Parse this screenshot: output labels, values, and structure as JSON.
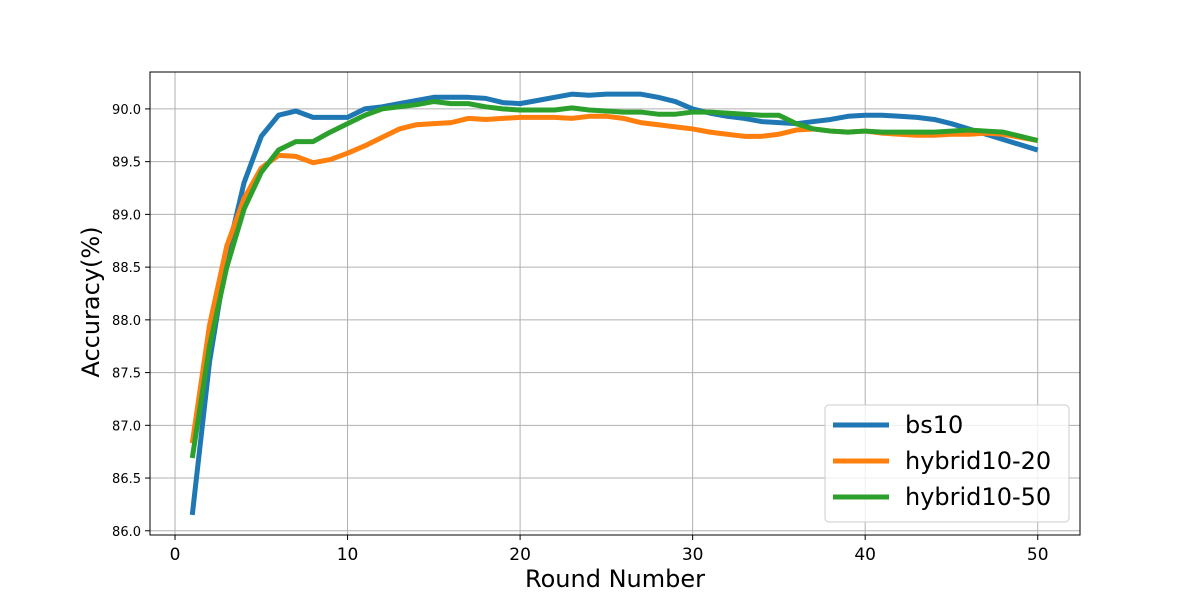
{
  "chart_data": {
    "type": "line",
    "title": "",
    "xlabel": "Round Number",
    "ylabel": "Accuracy(%)",
    "xlim": [
      -1.45,
      52.45
    ],
    "ylim": [
      85.96,
      90.35
    ],
    "xticks": [
      0,
      10,
      20,
      30,
      40,
      50
    ],
    "xtick_labels": [
      "0",
      "10",
      "20",
      "30",
      "40",
      "50"
    ],
    "yticks": [
      86.0,
      86.5,
      87.0,
      87.5,
      88.0,
      88.5,
      89.0,
      89.5,
      90.0
    ],
    "ytick_labels": [
      "86.0",
      "86.5",
      "87.0",
      "87.5",
      "88.0",
      "88.5",
      "89.0",
      "89.5",
      "90.0"
    ],
    "grid": true,
    "legend_position": "lower-right",
    "x": [
      1,
      2,
      3,
      4,
      5,
      6,
      7,
      8,
      9,
      10,
      11,
      12,
      13,
      14,
      15,
      16,
      17,
      18,
      19,
      20,
      21,
      22,
      23,
      24,
      25,
      26,
      27,
      28,
      29,
      30,
      31,
      32,
      33,
      34,
      35,
      36,
      37,
      38,
      39,
      40,
      41,
      42,
      43,
      44,
      45,
      46,
      47,
      48,
      49,
      50
    ],
    "series": [
      {
        "name": "bs10",
        "color": "#1f77b4",
        "values": [
          86.15,
          87.6,
          88.6,
          89.3,
          89.74,
          89.94,
          89.98,
          89.92,
          89.92,
          89.92,
          90.0,
          90.02,
          90.05,
          90.08,
          90.11,
          90.11,
          90.11,
          90.1,
          90.06,
          90.05,
          90.08,
          90.11,
          90.14,
          90.13,
          90.14,
          90.14,
          90.14,
          90.11,
          90.07,
          90.0,
          89.96,
          89.93,
          89.91,
          89.88,
          89.87,
          89.86,
          89.88,
          89.9,
          89.93,
          89.94,
          89.94,
          89.93,
          89.92,
          89.9,
          89.86,
          89.81,
          89.76,
          89.71,
          89.66,
          89.61
        ]
      },
      {
        "name": "hybrid10-20",
        "color": "#ff7f0e",
        "values": [
          86.83,
          87.95,
          88.7,
          89.15,
          89.44,
          89.56,
          89.55,
          89.49,
          89.52,
          89.58,
          89.65,
          89.73,
          89.81,
          89.85,
          89.86,
          89.87,
          89.91,
          89.9,
          89.91,
          89.92,
          89.92,
          89.92,
          89.91,
          89.93,
          89.93,
          89.91,
          89.87,
          89.85,
          89.83,
          89.81,
          89.78,
          89.76,
          89.74,
          89.74,
          89.76,
          89.8,
          89.81,
          89.79,
          89.78,
          89.79,
          89.77,
          89.76,
          89.75,
          89.75,
          89.76,
          89.76,
          89.77,
          89.76,
          89.73,
          89.7
        ]
      },
      {
        "name": "hybrid10-50",
        "color": "#2ca02c",
        "values": [
          86.69,
          87.75,
          88.5,
          89.05,
          89.4,
          89.61,
          89.69,
          89.69,
          89.78,
          89.86,
          89.94,
          90.0,
          90.02,
          90.04,
          90.07,
          90.05,
          90.05,
          90.02,
          90.0,
          89.99,
          89.99,
          89.99,
          90.01,
          89.99,
          89.98,
          89.97,
          89.97,
          89.95,
          89.95,
          89.97,
          89.97,
          89.96,
          89.95,
          89.94,
          89.94,
          89.86,
          89.81,
          89.79,
          89.78,
          89.79,
          89.78,
          89.78,
          89.78,
          89.78,
          89.79,
          89.8,
          89.79,
          89.78,
          89.74,
          89.7
        ]
      }
    ]
  }
}
